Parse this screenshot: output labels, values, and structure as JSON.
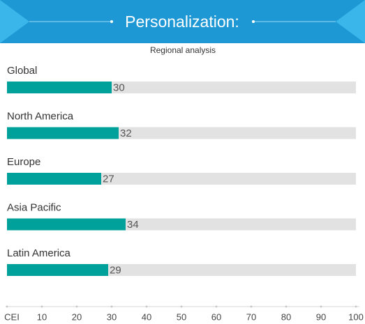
{
  "chart_data": {
    "type": "bar",
    "orientation": "horizontal",
    "title": "Personalization:",
    "subtitle": "Regional analysis",
    "categories": [
      "Global",
      "North America",
      "Europe",
      "Asia Pacific",
      "Latin America"
    ],
    "values": [
      30,
      32,
      27,
      34,
      29
    ],
    "color": "#00a19a",
    "xlim": [
      0,
      100
    ],
    "xticks": [
      {
        "value": 0,
        "label": "CEI"
      },
      10,
      20,
      30,
      40,
      50,
      60,
      70,
      80,
      90,
      100
    ]
  }
}
